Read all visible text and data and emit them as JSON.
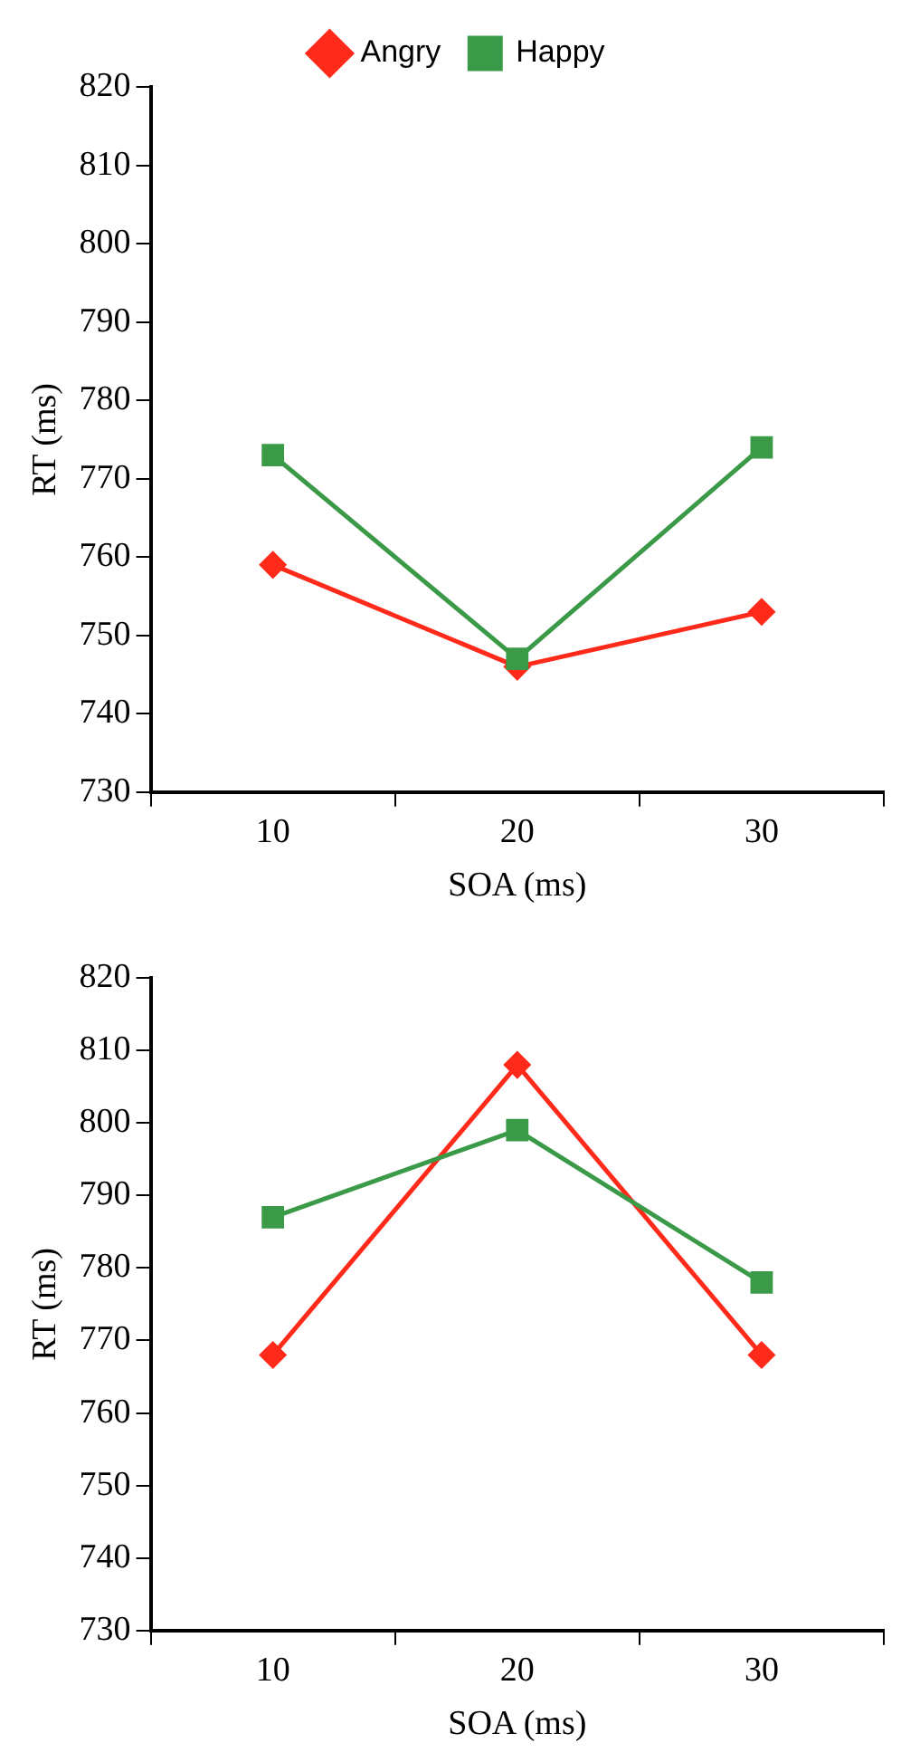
{
  "chart_data": [
    {
      "type": "line",
      "xlabel": "SOA (ms)",
      "ylabel": "RT (ms)",
      "categories": [
        "10",
        "20",
        "30"
      ],
      "ylim": [
        730,
        820
      ],
      "yticks": [
        730,
        740,
        750,
        760,
        770,
        780,
        790,
        800,
        810,
        820
      ],
      "grid": false,
      "legend": "top",
      "series": [
        {
          "name": "Angry",
          "color": "#ff2a1a",
          "marker": "diamond",
          "values": [
            759,
            746,
            753
          ]
        },
        {
          "name": "Happy",
          "color": "#3a9a48",
          "marker": "square",
          "values": [
            773,
            747,
            774
          ]
        }
      ]
    },
    {
      "type": "line",
      "xlabel": "SOA (ms)",
      "ylabel": "RT (ms)",
      "categories": [
        "10",
        "20",
        "30"
      ],
      "ylim": [
        730,
        820
      ],
      "yticks": [
        730,
        740,
        750,
        760,
        770,
        780,
        790,
        800,
        810,
        820
      ],
      "grid": false,
      "legend": false,
      "series": [
        {
          "color": "#ff2a1a",
          "marker": "diamond",
          "values": [
            768,
            808,
            768
          ]
        },
        {
          "color": "#3a9a48",
          "marker": "square",
          "values": [
            787,
            799,
            778
          ]
        }
      ]
    }
  ]
}
